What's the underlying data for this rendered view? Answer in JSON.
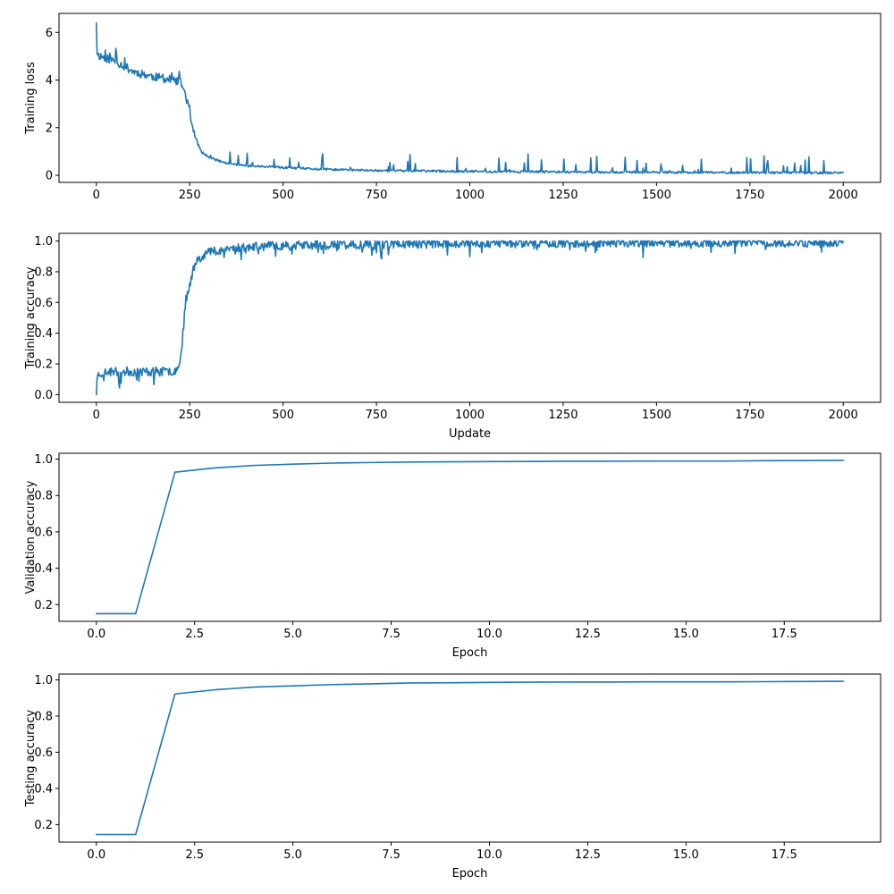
{
  "colors": {
    "series": "#1f77b4",
    "axes": "#000000",
    "background": "#ffffff"
  },
  "chart_data": [
    {
      "type": "line",
      "xlabel": "",
      "ylabel": "Training loss",
      "xlim": [
        -100,
        2100
      ],
      "ylim": [
        -0.3,
        6.8
      ],
      "xticks": [
        0,
        250,
        500,
        750,
        1000,
        1250,
        1500,
        1750,
        2000
      ],
      "xtick_labels": [
        "0",
        "250",
        "500",
        "750",
        "1000",
        "1250",
        "1500",
        "1750",
        "2000"
      ],
      "yticks": [
        0,
        2,
        4,
        6
      ],
      "ytick_labels": [
        "0",
        "2",
        "4",
        "6"
      ],
      "grid": false,
      "noise": {
        "seed": 11,
        "step": 2,
        "amp": 0.18,
        "spike_prob": 0.06,
        "spike_amp": 0.75,
        "clip": [
          0.01,
          6.5
        ]
      },
      "series": [
        {
          "x": [
            0,
            2,
            5,
            20,
            50,
            100,
            150,
            200,
            225,
            235,
            245,
            255,
            265,
            280,
            300,
            350,
            400,
            500,
            600,
            750,
            1000,
            1250,
            1500,
            1750,
            2000
          ],
          "values": [
            6.4,
            5.2,
            5.05,
            4.95,
            4.8,
            4.35,
            4.15,
            4.0,
            3.9,
            3.6,
            3.0,
            2.2,
            1.6,
            1.0,
            0.75,
            0.5,
            0.4,
            0.32,
            0.25,
            0.2,
            0.16,
            0.14,
            0.12,
            0.11,
            0.1
          ]
        }
      ]
    },
    {
      "type": "line",
      "xlabel": "Update",
      "ylabel": "Training accuracy",
      "xlim": [
        -100,
        2100
      ],
      "ylim": [
        -0.05,
        1.05
      ],
      "xticks": [
        0,
        250,
        500,
        750,
        1000,
        1250,
        1500,
        1750,
        2000
      ],
      "xtick_labels": [
        "0",
        "250",
        "500",
        "750",
        "1000",
        "1250",
        "1500",
        "1750",
        "2000"
      ],
      "yticks": [
        0,
        0.2,
        0.4,
        0.6,
        0.8,
        1.0
      ],
      "ytick_labels": [
        "0.0",
        "0.2",
        "0.4",
        "0.6",
        "0.8",
        "1.0"
      ],
      "grid": false,
      "noise": {
        "seed": 23,
        "step": 2,
        "amp": 0.03,
        "spike_prob": 0.05,
        "spike_amp": -0.09,
        "clip": [
          0.0,
          1.0
        ]
      },
      "series": [
        {
          "x": [
            0,
            2,
            10,
            50,
            100,
            150,
            200,
            220,
            230,
            240,
            250,
            260,
            270,
            300,
            350,
            400,
            500,
            750,
            1000,
            1250,
            1500,
            1750,
            2000
          ],
          "values": [
            0.0,
            0.12,
            0.14,
            0.15,
            0.15,
            0.15,
            0.15,
            0.17,
            0.35,
            0.62,
            0.72,
            0.82,
            0.88,
            0.93,
            0.95,
            0.96,
            0.97,
            0.98,
            0.985,
            0.988,
            0.99,
            0.99,
            0.99
          ]
        }
      ]
    },
    {
      "type": "line",
      "xlabel": "Epoch",
      "ylabel": "Validation accuracy",
      "xlim": [
        -0.95,
        19.95
      ],
      "ylim": [
        0.108,
        1.032
      ],
      "xticks": [
        0,
        2.5,
        5,
        7.5,
        10,
        12.5,
        15,
        17.5
      ],
      "xtick_labels": [
        "0.0",
        "2.5",
        "5.0",
        "7.5",
        "10.0",
        "12.5",
        "15.0",
        "17.5"
      ],
      "yticks": [
        0.2,
        0.4,
        0.6,
        0.8,
        1.0
      ],
      "ytick_labels": [
        "0.2",
        "0.4",
        "0.6",
        "0.8",
        "1.0"
      ],
      "grid": false,
      "series": [
        {
          "x": [
            0,
            1,
            2,
            3,
            4,
            5,
            6,
            7,
            8,
            9,
            10,
            11,
            12,
            13,
            14,
            15,
            16,
            17,
            18,
            19
          ],
          "values": [
            0.15,
            0.15,
            0.928,
            0.951,
            0.965,
            0.972,
            0.978,
            0.981,
            0.984,
            0.985,
            0.986,
            0.987,
            0.988,
            0.988,
            0.989,
            0.989,
            0.989,
            0.991,
            0.992,
            0.993
          ]
        }
      ]
    },
    {
      "type": "line",
      "xlabel": "Epoch",
      "ylabel": "Testing accuracy",
      "xlim": [
        -0.95,
        19.95
      ],
      "ylim": [
        0.103,
        1.032
      ],
      "xticks": [
        0,
        2.5,
        5,
        7.5,
        10,
        12.5,
        15,
        17.5
      ],
      "xtick_labels": [
        "0.0",
        "2.5",
        "5.0",
        "7.5",
        "10.0",
        "12.5",
        "15.0",
        "17.5"
      ],
      "yticks": [
        0.2,
        0.4,
        0.6,
        0.8,
        1.0
      ],
      "ytick_labels": [
        "0.2",
        "0.4",
        "0.6",
        "0.8",
        "1.0"
      ],
      "grid": false,
      "series": [
        {
          "x": [
            0,
            1,
            2,
            3,
            4,
            5,
            6,
            7,
            8,
            9,
            10,
            11,
            12,
            13,
            14,
            15,
            16,
            17,
            18,
            19
          ],
          "values": [
            0.145,
            0.145,
            0.922,
            0.945,
            0.96,
            0.967,
            0.974,
            0.978,
            0.983,
            0.984,
            0.986,
            0.987,
            0.988,
            0.988,
            0.989,
            0.989,
            0.989,
            0.99,
            0.991,
            0.992
          ]
        }
      ]
    }
  ]
}
